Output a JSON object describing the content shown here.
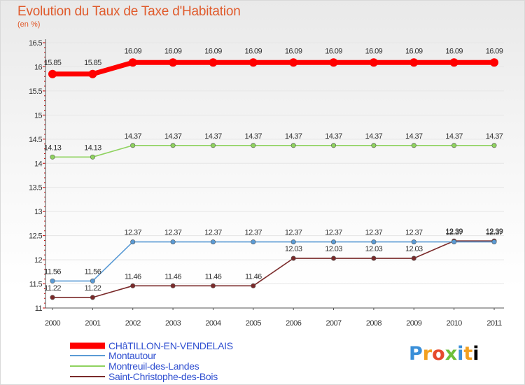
{
  "chart_data": {
    "type": "line",
    "title": "Evolution du Taux de Taxe d'Habitation",
    "subtitle": "(en %)",
    "x": [
      "2000",
      "2001",
      "2002",
      "2003",
      "2004",
      "2005",
      "2006",
      "2007",
      "2008",
      "2009",
      "2010",
      "2011"
    ],
    "ylim": [
      11,
      16.5
    ],
    "yticks": [
      "11",
      "11.5",
      "12",
      "12.5",
      "13",
      "13.5",
      "14",
      "14.5",
      "15",
      "15.5",
      "16",
      "16.5"
    ],
    "legend_position": "bottom-left",
    "series": [
      {
        "name": "CHâTILLON-EN-VENDELAIS",
        "color": "#ff0000",
        "values": [
          15.85,
          15.85,
          16.09,
          16.09,
          16.09,
          16.09,
          16.09,
          16.09,
          16.09,
          16.09,
          16.09,
          16.09
        ],
        "labels": [
          "15.85",
          "15.85",
          "16.09",
          "16.09",
          "16.09",
          "16.09",
          "16.09",
          "16.09",
          "16.09",
          "16.09",
          "16.09",
          "16.09"
        ]
      },
      {
        "name": "Montautour",
        "color": "#5b9bd5",
        "values": [
          11.56,
          11.56,
          12.37,
          12.37,
          12.37,
          12.37,
          12.37,
          12.37,
          12.37,
          12.37,
          12.37,
          12.37
        ],
        "labels": [
          "11.56",
          "11.56",
          "12.37",
          "12.37",
          "12.37",
          "12.37",
          "12.37",
          "12.37",
          "12.37",
          "12.37",
          "12.37",
          "12.37"
        ]
      },
      {
        "name": "Montreuil-des-Landes",
        "color": "#8fd25f",
        "values": [
          14.13,
          14.13,
          14.37,
          14.37,
          14.37,
          14.37,
          14.37,
          14.37,
          14.37,
          14.37,
          14.37,
          14.37
        ],
        "labels": [
          "14.13",
          "14.13",
          "14.37",
          "14.37",
          "14.37",
          "14.37",
          "14.37",
          "14.37",
          "14.37",
          "14.37",
          "14.37",
          "14.37"
        ]
      },
      {
        "name": "Saint-Christophe-des-Bois",
        "color": "#7a2a2a",
        "values": [
          11.22,
          11.22,
          11.46,
          11.46,
          11.46,
          11.46,
          12.03,
          12.03,
          12.03,
          12.03,
          12.39,
          12.39
        ],
        "labels": [
          "11.22",
          "11.22",
          "11.46",
          "11.46",
          "11.46",
          "11.46",
          "12.03",
          "12.03",
          "12.03",
          "12.03",
          "12.39",
          "12.39"
        ]
      }
    ]
  },
  "branding": {
    "logo_letters": [
      "P",
      "r",
      "o",
      "x",
      "i",
      "t",
      "i"
    ]
  }
}
